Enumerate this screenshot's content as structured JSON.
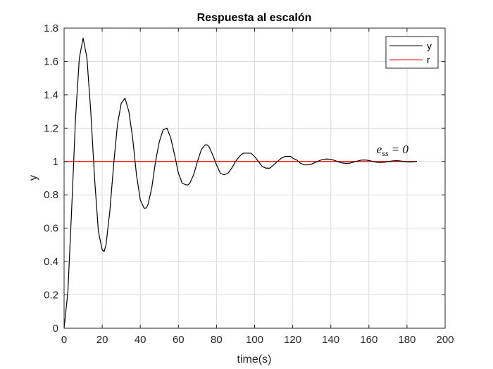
{
  "chart_data": {
    "type": "line",
    "title": "Respuesta al escalón",
    "xlabel": "time(s)",
    "ylabel": "y",
    "xlim": [
      0,
      200
    ],
    "ylim": [
      0,
      1.8
    ],
    "xticks": [
      0,
      20,
      40,
      60,
      80,
      100,
      120,
      140,
      160,
      180,
      200
    ],
    "yticks": [
      0,
      0.2,
      0.4,
      0.6,
      0.8,
      1,
      1.2,
      1.4,
      1.6,
      1.8
    ],
    "xtick_labels": [
      "0",
      "20",
      "40",
      "60",
      "80",
      "100",
      "120",
      "140",
      "160",
      "180",
      "200"
    ],
    "ytick_labels": [
      "0",
      "0.2",
      "0.4",
      "0.6",
      "0.8",
      "1",
      "1.2",
      "1.4",
      "1.6",
      "1.8"
    ],
    "grid": true,
    "legend_position": "top-right",
    "annotation": {
      "text": "e",
      "subscript": "ss",
      "suffix": " = 0",
      "x": 164,
      "y": 1.05
    },
    "series": [
      {
        "name": "y",
        "color": "#000000",
        "style": "solid",
        "x": [
          0,
          2,
          4,
          6,
          8,
          10,
          12,
          14,
          16,
          18,
          20,
          21,
          22,
          24,
          26,
          28,
          30,
          32,
          34,
          36,
          38,
          40,
          42,
          43,
          44,
          46,
          48,
          50,
          52,
          54,
          56,
          58,
          60,
          62,
          64,
          65,
          66,
          68,
          70,
          72,
          74,
          75,
          76,
          78,
          80,
          82,
          84,
          86,
          88,
          90,
          92,
          94,
          96,
          97,
          98,
          100,
          102,
          104,
          106,
          108,
          110,
          112,
          114,
          116,
          118,
          119,
          120,
          122,
          124,
          126,
          128,
          130,
          132,
          134,
          136,
          138,
          140,
          142,
          144,
          146,
          148,
          150,
          152,
          154,
          156,
          158,
          160,
          162,
          164,
          166,
          168,
          170,
          172,
          174,
          176,
          178,
          180,
          182,
          184,
          185
        ],
        "values": [
          0,
          0.22,
          0.72,
          1.26,
          1.62,
          1.74,
          1.62,
          1.3,
          0.9,
          0.58,
          0.47,
          0.46,
          0.5,
          0.7,
          0.98,
          1.22,
          1.35,
          1.38,
          1.3,
          1.14,
          0.92,
          0.77,
          0.72,
          0.72,
          0.74,
          0.84,
          1.0,
          1.12,
          1.19,
          1.2,
          1.14,
          1.04,
          0.93,
          0.87,
          0.86,
          0.86,
          0.87,
          0.92,
          1.0,
          1.07,
          1.1,
          1.1,
          1.09,
          1.04,
          0.98,
          0.93,
          0.92,
          0.93,
          0.96,
          1.0,
          1.03,
          1.05,
          1.05,
          1.05,
          1.05,
          1.03,
          1.0,
          0.97,
          0.96,
          0.96,
          0.98,
          1.0,
          1.02,
          1.03,
          1.03,
          1.03,
          1.02,
          1.01,
          0.99,
          0.98,
          0.98,
          0.985,
          0.995,
          1.005,
          1.013,
          1.015,
          1.013,
          1.006,
          0.998,
          0.991,
          0.989,
          0.99,
          0.996,
          1.003,
          1.008,
          1.009,
          1.006,
          1.001,
          0.996,
          0.994,
          0.995,
          0.999,
          1.003,
          1.005,
          1.004,
          1.001,
          0.998,
          0.997,
          0.999,
          1.001
        ]
      },
      {
        "name": "r",
        "color": "#ff0000",
        "style": "solid",
        "x": [
          0,
          185
        ],
        "values": [
          1,
          1
        ]
      }
    ]
  }
}
